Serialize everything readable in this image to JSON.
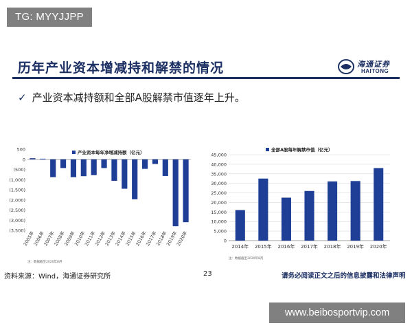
{
  "badge": {
    "text": "TG: MYYJJPP"
  },
  "slide": {
    "title": "历年产业资本增减持和解禁的情况",
    "bullet_icon": "check-icon",
    "bullet": "产业资本减持额和全部A股解禁市值逐年上升。"
  },
  "logo": {
    "cn": "海通证券",
    "en": "HAITONG"
  },
  "footer": {
    "source": "资料来源：Wind，海通证券研究所",
    "page": "23",
    "disclaimer": "请务必阅读正文之后的信息披露和法律声明"
  },
  "watermark": {
    "text": "www.beibosportvip.com"
  },
  "colors": {
    "navy": "#1b2f63",
    "bar": "#1f3f96",
    "grid": "#d9d9d9",
    "badge": "#808080"
  },
  "chart_data": [
    {
      "type": "bar",
      "legend": "产业资本每年净增减持额（亿元）",
      "legend_position": "top-right",
      "grid": true,
      "categories": [
        "2005年",
        "2006年",
        "2007年",
        "2008年",
        "2009年",
        "2010年",
        "2011年",
        "2012年",
        "2013年",
        "2014年",
        "2015年",
        "2016年",
        "2017年",
        "2018年",
        "2019年",
        "2020年"
      ],
      "values": [
        55,
        30,
        -880,
        -430,
        -880,
        -830,
        -780,
        -430,
        -1060,
        -1450,
        -1970,
        -470,
        -230,
        -820,
        -3300,
        -3100
      ],
      "yticks": [
        "500",
        "0",
        "(500)",
        "(1,000)",
        "(1,500)",
        "(2,000)",
        "(2,500)",
        "(3,000)",
        "(3,500)"
      ],
      "ylim": [
        -3500,
        500
      ],
      "note": "注：数据截至2020年8月"
    },
    {
      "type": "bar",
      "legend": "全部A股每年解禁市值（亿元）",
      "legend_position": "top-left",
      "grid": true,
      "categories": [
        "2014年",
        "2015年",
        "2016年",
        "2017年",
        "2018年",
        "2019年",
        "2020年"
      ],
      "values": [
        16000,
        32500,
        22500,
        26000,
        31000,
        31200,
        38000
      ],
      "yticks": [
        "45,000",
        "40,000",
        "35,000",
        "30,000",
        "25,000",
        "20,000",
        "15,000",
        "10,000",
        "5,000",
        "0"
      ],
      "ylim": [
        0,
        45000
      ],
      "note": "注：数据截至2020年8月"
    }
  ]
}
